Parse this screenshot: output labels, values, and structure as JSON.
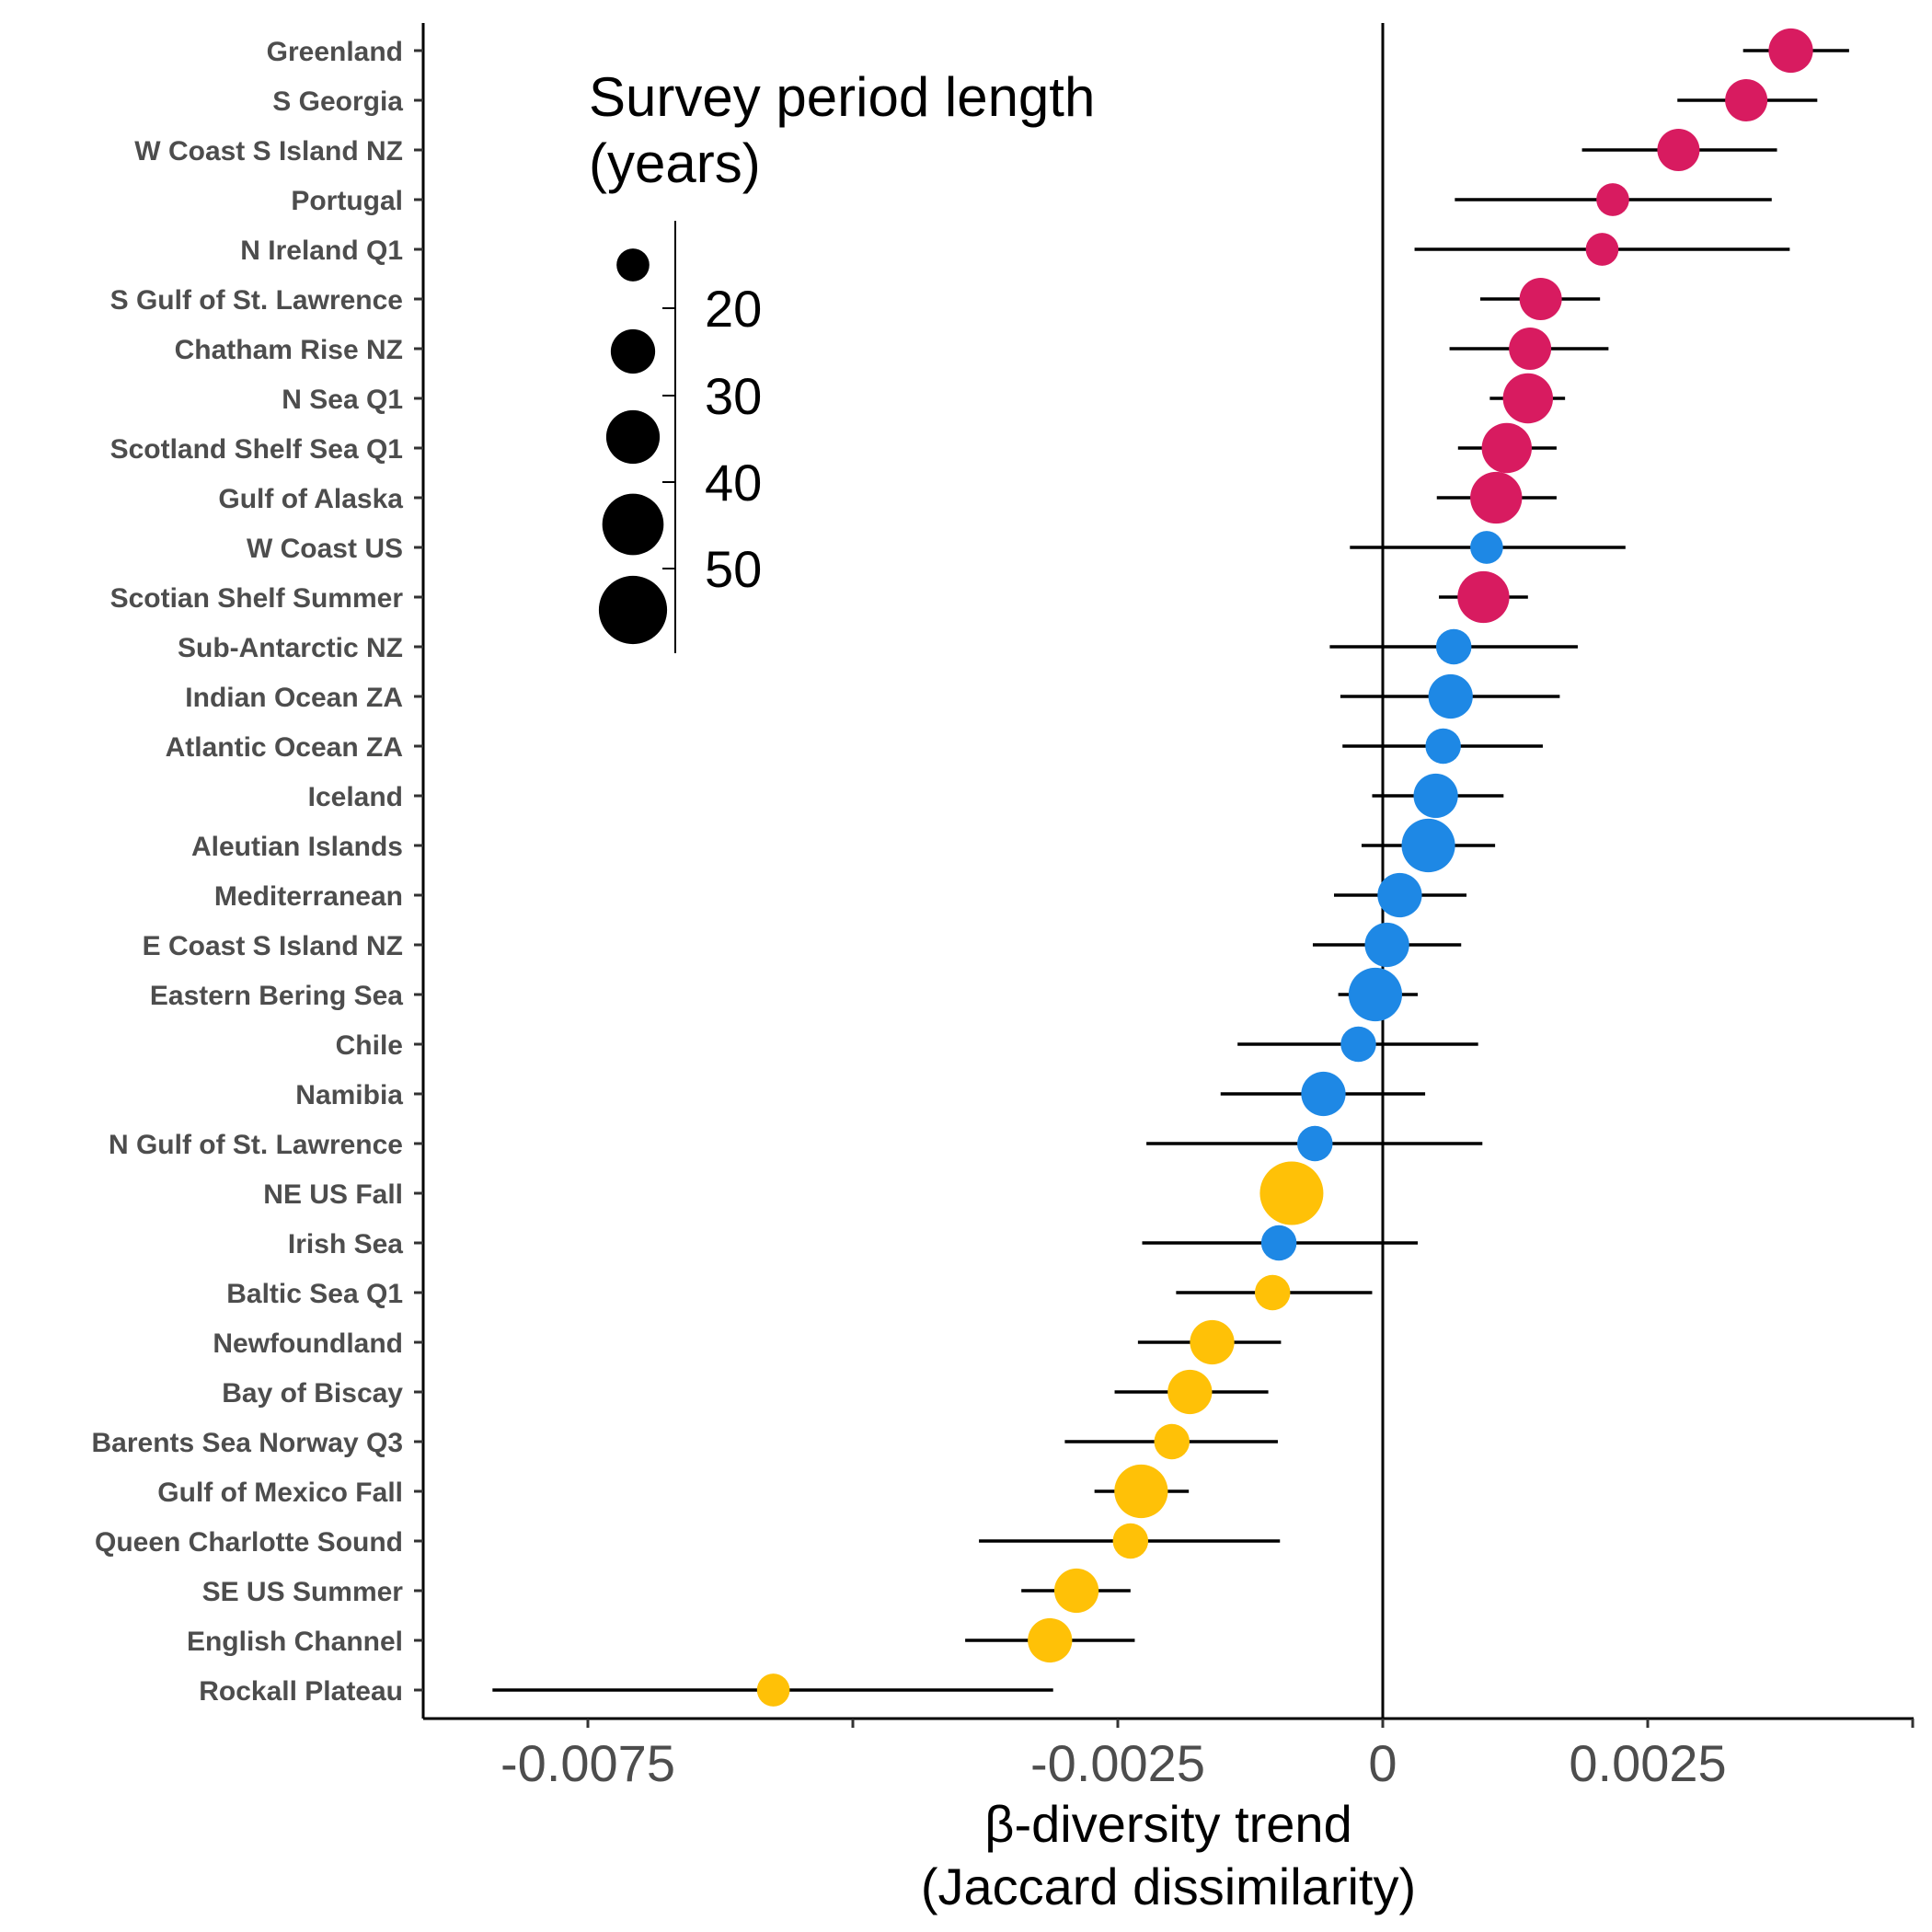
{
  "chart_data": {
    "type": "scatter",
    "xlabel_lines": [
      "β-diversity trend",
      "(Jaccard dissimilarity)"
    ],
    "x_ticks": [
      {
        "value": -0.0075,
        "label": "-0.0075"
      },
      {
        "value": -0.005,
        "label": ""
      },
      {
        "value": -0.0025,
        "label": "-0.0025"
      },
      {
        "value": 0,
        "label": "0"
      },
      {
        "value": 0.0025,
        "label": "0.0025"
      },
      {
        "value": 0.005,
        "label": ""
      }
    ],
    "xlim": [
      -0.009,
      0.005
    ],
    "reference_line_x": 0,
    "size_legend": {
      "title_lines": [
        "Survey period length",
        "(years)"
      ],
      "entries": [
        {
          "value": 20,
          "label": "20"
        },
        {
          "value": 30,
          "label": "30"
        },
        {
          "value": 40,
          "label": "40"
        },
        {
          "value": 50,
          "label": "50"
        }
      ]
    },
    "colors": {
      "increase": "#D81B60",
      "no_change": "#1E88E5",
      "decrease": "#FFC107",
      "line": "#000000"
    },
    "regions": [
      {
        "name": "Greenland",
        "estimate": 0.00385,
        "lower": 0.0034,
        "upper": 0.0044,
        "years": 22,
        "group": "increase"
      },
      {
        "name": "S Georgia",
        "estimate": 0.00343,
        "lower": 0.00278,
        "upper": 0.0041,
        "years": 20,
        "group": "increase"
      },
      {
        "name": "W Coast S Island NZ",
        "estimate": 0.00279,
        "lower": 0.00188,
        "upper": 0.00372,
        "years": 20,
        "group": "increase"
      },
      {
        "name": "Portugal",
        "estimate": 0.00217,
        "lower": 0.00068,
        "upper": 0.00367,
        "years": 12,
        "group": "increase"
      },
      {
        "name": "N Ireland Q1",
        "estimate": 0.00207,
        "lower": 0.0003,
        "upper": 0.00384,
        "years": 12,
        "group": "increase"
      },
      {
        "name": "S Gulf of St. Lawrence",
        "estimate": 0.00149,
        "lower": 0.00092,
        "upper": 0.00205,
        "years": 20,
        "group": "increase"
      },
      {
        "name": "Chatham Rise NZ",
        "estimate": 0.00139,
        "lower": 0.00063,
        "upper": 0.00213,
        "years": 20,
        "group": "increase"
      },
      {
        "name": "N Sea Q1",
        "estimate": 0.00137,
        "lower": 0.00101,
        "upper": 0.00172,
        "years": 28,
        "group": "increase"
      },
      {
        "name": "Scotland Shelf Sea Q1",
        "estimate": 0.00117,
        "lower": 0.00071,
        "upper": 0.00164,
        "years": 28,
        "group": "increase"
      },
      {
        "name": "Gulf of Alaska",
        "estimate": 0.00107,
        "lower": 0.00051,
        "upper": 0.00164,
        "years": 30,
        "group": "increase"
      },
      {
        "name": "W Coast US",
        "estimate": 0.00098,
        "lower": -0.00031,
        "upper": 0.00229,
        "years": 12,
        "group": "no_change"
      },
      {
        "name": "Scotian Shelf Summer",
        "estimate": 0.00095,
        "lower": 0.00053,
        "upper": 0.00137,
        "years": 30,
        "group": "increase"
      },
      {
        "name": "Sub-Antarctic NZ",
        "estimate": 0.00067,
        "lower": -0.0005,
        "upper": 0.00184,
        "years": 14,
        "group": "no_change"
      },
      {
        "name": "Indian Ocean ZA",
        "estimate": 0.00064,
        "lower": -0.0004,
        "upper": 0.00167,
        "years": 22,
        "group": "no_change"
      },
      {
        "name": "Atlantic Ocean ZA",
        "estimate": 0.00057,
        "lower": -0.00038,
        "upper": 0.00151,
        "years": 14,
        "group": "no_change"
      },
      {
        "name": "Iceland",
        "estimate": 0.0005,
        "lower": -0.0001,
        "upper": 0.00114,
        "years": 22,
        "group": "no_change"
      },
      {
        "name": "Aleutian Islands",
        "estimate": 0.00043,
        "lower": -0.0002,
        "upper": 0.00106,
        "years": 32,
        "group": "no_change"
      },
      {
        "name": "Mediterranean",
        "estimate": 0.00016,
        "lower": -0.00046,
        "upper": 0.00079,
        "years": 22,
        "group": "no_change"
      },
      {
        "name": "E Coast S Island NZ",
        "estimate": 4e-05,
        "lower": -0.00066,
        "upper": 0.00074,
        "years": 22,
        "group": "no_change"
      },
      {
        "name": "Eastern Bering Sea",
        "estimate": -7e-05,
        "lower": -0.00042,
        "upper": 0.00033,
        "years": 32,
        "group": "no_change"
      },
      {
        "name": "Chile",
        "estimate": -0.00023,
        "lower": -0.00137,
        "upper": 0.0009,
        "years": 14,
        "group": "no_change"
      },
      {
        "name": "Namibia",
        "estimate": -0.00056,
        "lower": -0.00153,
        "upper": 0.0004,
        "years": 22,
        "group": "no_change"
      },
      {
        "name": "N Gulf of St. Lawrence",
        "estimate": -0.00064,
        "lower": -0.00223,
        "upper": 0.00094,
        "years": 14,
        "group": "no_change"
      },
      {
        "name": "NE US Fall",
        "estimate": -0.00086,
        "lower": -0.00086,
        "upper": -0.00086,
        "years": 45,
        "group": "decrease"
      },
      {
        "name": "Irish Sea",
        "estimate": -0.00098,
        "lower": -0.00227,
        "upper": 0.00033,
        "years": 14,
        "group": "no_change"
      },
      {
        "name": "Baltic Sea Q1",
        "estimate": -0.00104,
        "lower": -0.00195,
        "upper": -0.0001,
        "years": 14,
        "group": "decrease"
      },
      {
        "name": "Newfoundland",
        "estimate": -0.00161,
        "lower": -0.00231,
        "upper": -0.00096,
        "years": 22,
        "group": "decrease"
      },
      {
        "name": "Bay of Biscay",
        "estimate": -0.00182,
        "lower": -0.00253,
        "upper": -0.00108,
        "years": 22,
        "group": "decrease"
      },
      {
        "name": "Barents Sea Norway Q3",
        "estimate": -0.00199,
        "lower": -0.003,
        "upper": -0.00099,
        "years": 14,
        "group": "decrease"
      },
      {
        "name": "Gulf of Mexico Fall",
        "estimate": -0.00228,
        "lower": -0.00272,
        "upper": -0.00183,
        "years": 32,
        "group": "decrease"
      },
      {
        "name": "Queen Charlotte Sound",
        "estimate": -0.00238,
        "lower": -0.00381,
        "upper": -0.00097,
        "years": 14,
        "group": "decrease"
      },
      {
        "name": "SE US Summer",
        "estimate": -0.00289,
        "lower": -0.00341,
        "upper": -0.00238,
        "years": 22,
        "group": "decrease"
      },
      {
        "name": "English Channel",
        "estimate": -0.00314,
        "lower": -0.00394,
        "upper": -0.00234,
        "years": 22,
        "group": "decrease"
      },
      {
        "name": "Rockall Plateau",
        "estimate": -0.00575,
        "lower": -0.0084,
        "upper": -0.00311,
        "years": 12,
        "group": "decrease"
      }
    ]
  }
}
